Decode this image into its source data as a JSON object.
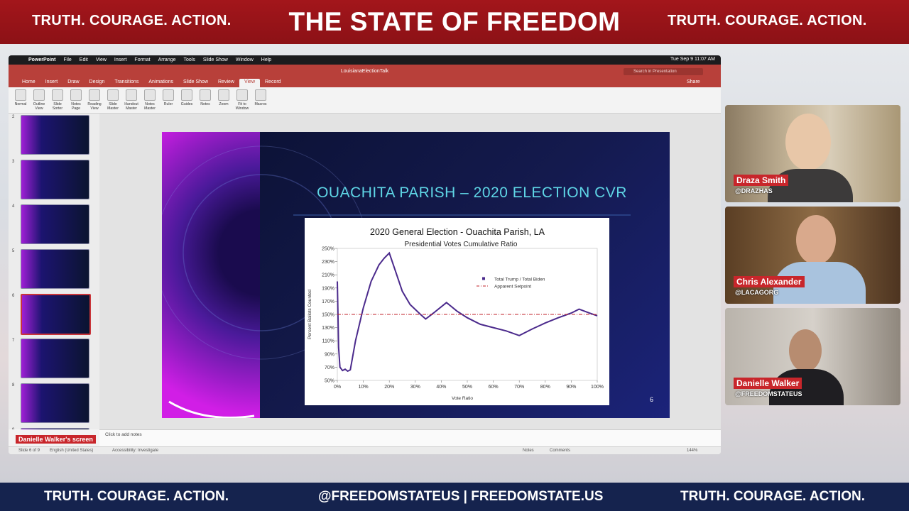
{
  "banner": {
    "left": "TRUTH. COURAGE. ACTION.",
    "title": "THE STATE OF FREEDOM",
    "right": "TRUTH. COURAGE. ACTION."
  },
  "window": {
    "menu": [
      "PowerPoint",
      "File",
      "Edit",
      "View",
      "Insert",
      "Format",
      "Arrange",
      "Tools",
      "Slide Show",
      "Window",
      "Help"
    ],
    "clock": "Tue Sep 9  11:07 AM",
    "doc_title": "LouisianaElectionTalk",
    "search": "Search in Presentation",
    "tabs": [
      "Home",
      "Insert",
      "Draw",
      "Design",
      "Transitions",
      "Animations",
      "Slide Show",
      "Review",
      "View",
      "Record"
    ],
    "active_tab": 8,
    "share": "Share",
    "ribbon": [
      "Normal",
      "Outline View",
      "Slide Sorter",
      "Notes Page",
      "Reading View",
      "Slide Master",
      "Handout Master",
      "Notes Master",
      "Ruler",
      "Guides",
      "Notes",
      "Zoom",
      "Fit to Window",
      "Macros"
    ],
    "thumbnails": [
      "2",
      "3",
      "4",
      "5",
      "6",
      "7",
      "8",
      "9"
    ],
    "selected_thumbnail": 4,
    "notes": "Click to add notes",
    "screen_label": "Danielle Walker's screen",
    "status": {
      "slide": "Slide 6 of 9",
      "language": "English (United States)",
      "accessibility": "Accessibility: Investigate",
      "notes": "Notes",
      "comments": "Comments",
      "zoom": "144%"
    }
  },
  "slide": {
    "title": "OUACHITA PARISH – 2020 ELECTION CVR",
    "number": "6",
    "chart": {
      "type": "line",
      "title": "2020 General Election - Ouachita Parish, LA",
      "subtitle": "Presidential Votes Cumulative Ratio",
      "x_label": "Vote Ratio",
      "y_label": "Percent Ballots Counted",
      "series": [
        {
          "name": "Total Trump / Total Biden",
          "color": "#4b2a8c",
          "x": [
            0,
            0.5,
            1,
            2,
            3,
            4,
            5,
            7,
            10,
            13,
            16,
            18,
            20,
            22,
            25,
            28,
            32,
            34,
            37,
            42,
            46,
            50,
            55,
            60,
            65,
            70,
            75,
            80,
            85,
            90,
            93,
            97,
            100
          ],
          "values": [
            200,
            100,
            70,
            65,
            67,
            64,
            66,
            110,
            160,
            200,
            225,
            235,
            243,
            220,
            185,
            165,
            150,
            143,
            152,
            168,
            155,
            145,
            135,
            130,
            125,
            118,
            128,
            137,
            145,
            152,
            158,
            152,
            148
          ]
        },
        {
          "name": "Apparent Setpoint",
          "color": "#c0202a",
          "x": [
            0,
            100
          ],
          "values": [
            150,
            150
          ]
        }
      ],
      "xlim": [
        0,
        100
      ],
      "ylim": [
        50,
        250
      ],
      "xticks": [
        {
          "value": 0,
          "label": "0%"
        },
        {
          "value": 10,
          "label": "10%"
        },
        {
          "value": 20,
          "label": "20%"
        },
        {
          "value": 30,
          "label": "30%"
        },
        {
          "value": 40,
          "label": "40%"
        },
        {
          "value": 50,
          "label": "50%"
        },
        {
          "value": 60,
          "label": "60%"
        },
        {
          "value": 70,
          "label": "70%"
        },
        {
          "value": 80,
          "label": "80%"
        },
        {
          "value": 90,
          "label": "90%"
        },
        {
          "value": 100,
          "label": "100%"
        }
      ],
      "yticks": [
        {
          "value": 50,
          "label": "50%"
        },
        {
          "value": 70,
          "label": "70%"
        },
        {
          "value": 90,
          "label": "90%"
        },
        {
          "value": 110,
          "label": "110%"
        },
        {
          "value": 130,
          "label": "130%"
        },
        {
          "value": 150,
          "label": "150%"
        },
        {
          "value": 170,
          "label": "170%"
        },
        {
          "value": 190,
          "label": "190%"
        },
        {
          "value": 210,
          "label": "210%"
        },
        {
          "value": 230,
          "label": "230%"
        },
        {
          "value": 250,
          "label": "250%"
        }
      ]
    }
  },
  "participants": [
    {
      "name": "Draza Smith",
      "handle": "@DRAZHAS"
    },
    {
      "name": "Chris Alexander",
      "handle": "@LACAGORG"
    },
    {
      "name": "Danielle Walker",
      "handle": "@FREEDOMSTATEUS"
    }
  ],
  "footer": {
    "left": "TRUTH. COURAGE. ACTION.",
    "center": "@FREEDOMSTATEUS | FREEDOMSTATE.US",
    "right": "TRUTH. COURAGE. ACTION."
  }
}
